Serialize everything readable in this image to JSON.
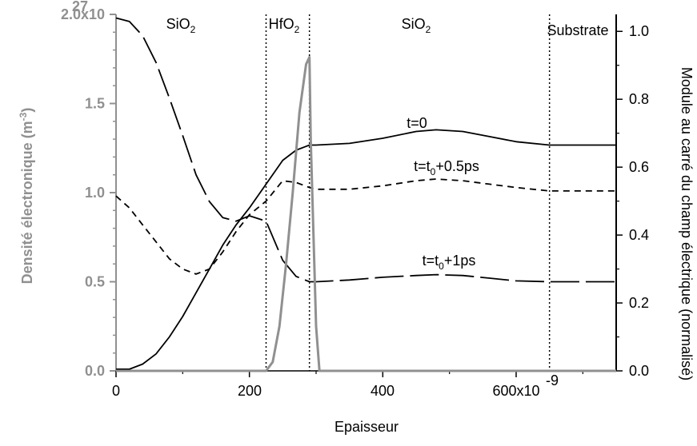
{
  "chart_data": {
    "type": "line",
    "xlabel": "Epaisseur",
    "x_tick_labels": [
      "0",
      "200",
      "400",
      "600x10",
      "-9"
    ],
    "x_ticks": [
      0,
      200,
      400,
      600
    ],
    "xlim": [
      0,
      750
    ],
    "left_axis": {
      "ylabel_main": "Densité électronique (m",
      "ylabel_exp": "-3",
      "ylabel_end": ")",
      "ylim": [
        0,
        2.0
      ],
      "tick_labels": [
        "0.0",
        "0.5",
        "1.0",
        "1.5",
        "2.0x10"
      ],
      "top_exponent": "27",
      "color": "#909090"
    },
    "right_axis": {
      "ylabel": "Module au carré du champ électrique (normalisé)",
      "ylim": [
        0,
        1.05
      ],
      "tick_labels": [
        "0.0",
        "0.2",
        "0.4",
        "0.6",
        "0.8",
        "1.0"
      ],
      "color": "#000000"
    },
    "regions": [
      {
        "label": "SiO",
        "sub": "2",
        "x_center": 110
      },
      {
        "label": "HfO",
        "sub": "2",
        "x_center": 262
      },
      {
        "label": "SiO",
        "sub": "2",
        "x_center": 470
      },
      {
        "label": "Substrate",
        "sub": "",
        "x_center": 705
      }
    ],
    "interfaces": [
      225,
      290,
      650
    ],
    "annotations": [
      {
        "text": "t=0"
      },
      {
        "text": "t=t",
        "sub": "0",
        "rest": "+0.5ps"
      },
      {
        "text": "t=t",
        "sub": "0",
        "rest": "+1ps"
      }
    ],
    "series": [
      {
        "name": "t=0",
        "axis": "right",
        "style": "solid",
        "color": "#000000",
        "x": [
          0,
          20,
          40,
          60,
          80,
          100,
          120,
          140,
          160,
          180,
          200,
          225,
          250,
          270,
          290,
          300,
          350,
          400,
          450,
          480,
          520,
          560,
          600,
          650,
          700,
          750
        ],
        "y": [
          0.005,
          0.005,
          0.02,
          0.05,
          0.1,
          0.16,
          0.23,
          0.3,
          0.37,
          0.43,
          0.48,
          0.55,
          0.62,
          0.65,
          0.665,
          0.665,
          0.67,
          0.685,
          0.705,
          0.71,
          0.705,
          0.69,
          0.675,
          0.665,
          0.665,
          0.665
        ]
      },
      {
        "name": "t=t0+0.5ps",
        "axis": "right",
        "style": "dashed",
        "color": "#000000",
        "x": [
          0,
          20,
          40,
          60,
          80,
          100,
          120,
          140,
          160,
          180,
          200,
          225,
          250,
          270,
          290,
          300,
          350,
          400,
          450,
          480,
          520,
          560,
          600,
          650,
          700,
          750
        ],
        "y": [
          0.515,
          0.48,
          0.43,
          0.38,
          0.33,
          0.3,
          0.285,
          0.3,
          0.35,
          0.41,
          0.46,
          0.5,
          0.56,
          0.555,
          0.54,
          0.535,
          0.535,
          0.545,
          0.56,
          0.565,
          0.56,
          0.55,
          0.54,
          0.53,
          0.53,
          0.53
        ]
      },
      {
        "name": "t=t0+1ps",
        "axis": "left",
        "style": "long-dash",
        "color": "#000000",
        "x": [
          0,
          20,
          40,
          60,
          80,
          100,
          120,
          140,
          160,
          180,
          200,
          225,
          250,
          270,
          290,
          300,
          350,
          400,
          450,
          480,
          520,
          560,
          600,
          650,
          700,
          750
        ],
        "y": [
          1.98,
          1.96,
          1.88,
          1.73,
          1.53,
          1.32,
          1.1,
          0.95,
          0.86,
          0.84,
          0.87,
          0.84,
          0.62,
          0.53,
          0.5,
          0.5,
          0.51,
          0.525,
          0.535,
          0.54,
          0.535,
          0.52,
          0.505,
          0.5,
          0.5,
          0.5
        ]
      },
      {
        "name": "",
        "axis": "left",
        "style": "solid",
        "color": "#909090",
        "x": [
          0,
          225,
          235,
          245,
          255,
          265,
          275,
          285,
          290,
          292,
          300,
          305,
          750
        ],
        "y": [
          0,
          0,
          0.05,
          0.25,
          0.6,
          1.0,
          1.45,
          1.72,
          1.76,
          1.3,
          0.25,
          0,
          0
        ]
      }
    ]
  }
}
